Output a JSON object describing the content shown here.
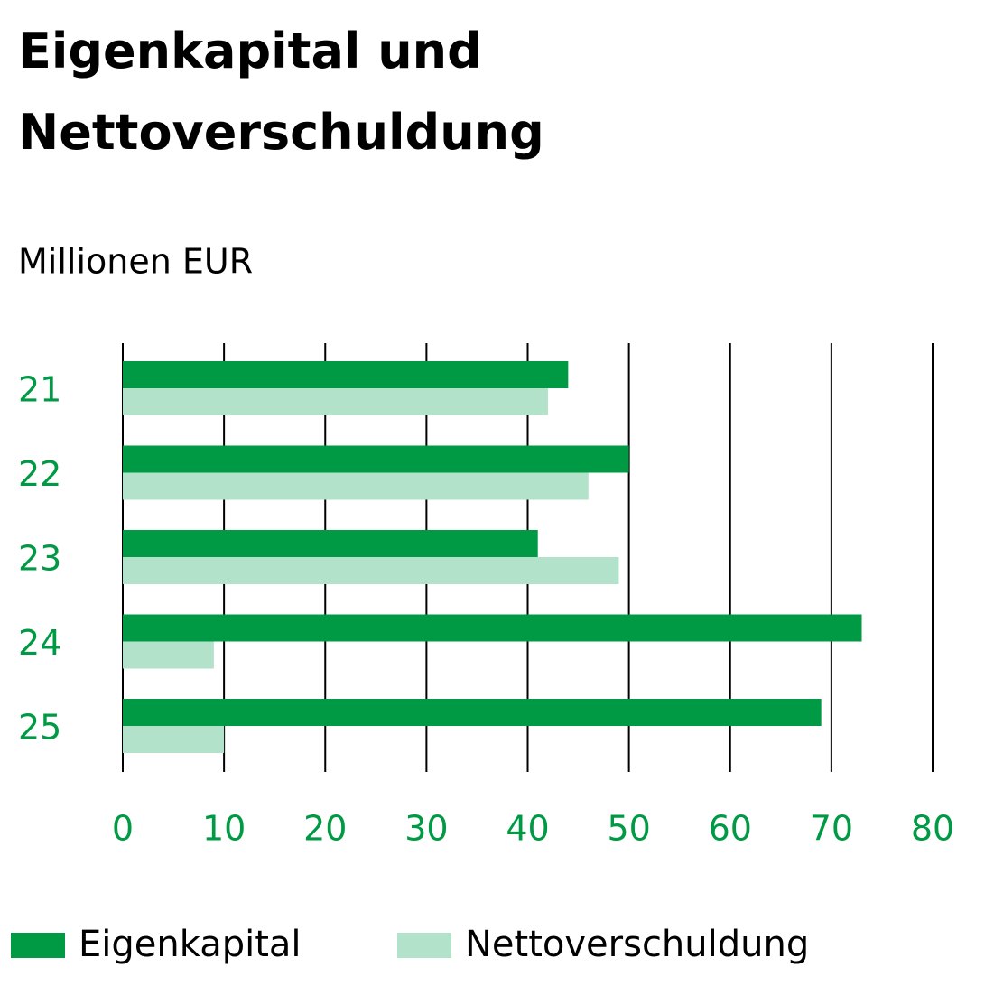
{
  "chart_data": {
    "type": "hbar",
    "title": "Eigenkapital und Nettoverschuldung",
    "subtitle": "Millionen EUR",
    "categories": [
      "21",
      "22",
      "23",
      "24",
      "25"
    ],
    "series": [
      {
        "name": "Eigenkapital",
        "color": "#009a44",
        "values": [
          44,
          50,
          41,
          73,
          69
        ]
      },
      {
        "name": "Nettoverschuldung",
        "color": "#b3e2ca",
        "values": [
          42,
          46,
          49,
          9,
          10
        ]
      }
    ],
    "xlim": [
      0,
      80
    ],
    "xticks": [
      0,
      10,
      20,
      30,
      40,
      50,
      60,
      70,
      80
    ],
    "grid": true,
    "tick_color": "#009a44",
    "legend": "bottom"
  }
}
